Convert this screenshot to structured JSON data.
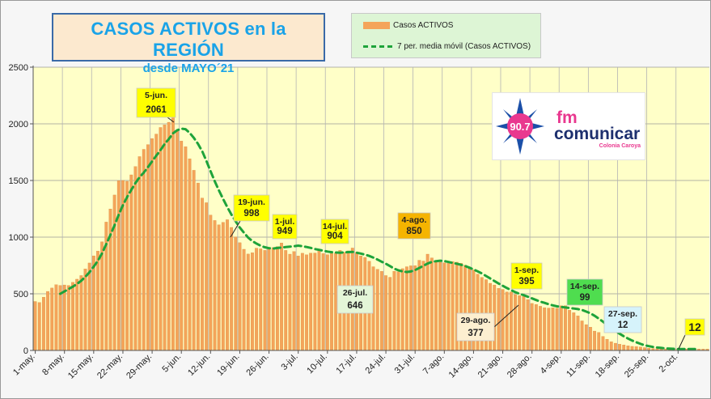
{
  "title": {
    "main": "CASOS ACTIVOS en la REGIÓN",
    "sub": "desde MAYO´21"
  },
  "legend": {
    "bars": "Casos ACTIVOS",
    "line": "7 per. media móvil (Casos ACTIVOS)"
  },
  "logo": {
    "freq": "90.7",
    "fm": "fm",
    "brand": "comunicar",
    "place": "Colonia Caroya"
  },
  "colors": {
    "bar": "#f4a45a",
    "bar_edge": "#d98a3a",
    "line": "#1ea33a",
    "plot_bg": "#ffffc8",
    "title_text": "#1aa3e8",
    "title_border": "#3a6aa8"
  },
  "chart_data": {
    "type": "bar",
    "series": [
      {
        "name": "Casos ACTIVOS",
        "values": [
          432,
          423,
          470,
          521,
          551,
          580,
          574,
          578,
          573,
          601,
          629,
          661,
          719,
          772,
          835,
          877,
          959,
          1133,
          1249,
          1372,
          1498,
          1500,
          1493,
          1550,
          1623,
          1711,
          1775,
          1817,
          1870,
          1910,
          1968,
          1991,
          2014,
          2061,
          1937,
          1848,
          1798,
          1692,
          1590,
          1478,
          1345,
          1304,
          1195,
          1147,
          1109,
          1131,
          1154,
          1086,
          1002,
          951,
          893,
          851,
          862,
          903,
          897,
          883,
          910,
          908,
          917,
          949,
          883,
          850,
          873,
          834,
          858,
          844,
          859,
          860,
          889,
          855,
          845,
          857,
          861,
          883,
          866,
          879,
          904,
          865,
          835,
          821,
          787,
          739,
          716,
          698,
          661,
          646,
          699,
          694,
          722,
          739,
          747,
          748,
          796,
          789,
          850,
          817,
          786,
          779,
          773,
          770,
          785,
          779,
          769,
          753,
          728,
          711,
          673,
          645,
          625,
          593,
          578,
          548,
          539,
          516,
          516,
          493,
          484,
          476,
          449,
          415,
          406,
          390,
          377,
          374,
          377,
          372,
          394,
          395,
          355,
          333,
          305,
          261,
          228,
          206,
          171,
          159,
          124,
          99,
          77,
          64,
          55,
          49,
          41,
          36,
          34,
          30,
          25,
          19,
          17,
          15,
          12,
          12,
          12,
          12,
          12,
          12,
          12,
          12,
          12,
          12,
          12,
          12
        ]
      },
      {
        "name": "7 per. media móvil (Casos ACTIVOS)",
        "values": [
          null,
          null,
          null,
          null,
          null,
          null,
          500,
          521,
          542,
          563,
          587,
          614,
          650,
          691,
          739,
          791,
          857,
          937,
          1020,
          1104,
          1198,
          1283,
          1353,
          1417,
          1477,
          1529,
          1570,
          1617,
          1669,
          1719,
          1768,
          1823,
          1866,
          1916,
          1943,
          1958,
          1952,
          1920,
          1876,
          1823,
          1758,
          1672,
          1582,
          1493,
          1413,
          1337,
          1265,
          1199,
          1140,
          1085,
          1039,
          996,
          966,
          943,
          924,
          911,
          902,
          899,
          904,
          908,
          912,
          916,
          920,
          925,
          920,
          913,
          905,
          895,
          888,
          880,
          873,
          867,
          864,
          863,
          866,
          868,
          870,
          863,
          855,
          846,
          834,
          819,
          802,
          783,
          765,
          744,
          722,
          707,
          697,
          692,
          697,
          709,
          728,
          747,
          767,
          781,
          788,
          792,
          789,
          781,
          773,
          765,
          756,
          745,
          731,
          715,
          698,
          679,
          657,
          635,
          613,
          591,
          571,
          551,
          532,
          514,
          500,
          488,
          474,
          459,
          445,
          431,
          420,
          408,
          398,
          389,
          384,
          379,
          375,
          370,
          365,
          357,
          343,
          328,
          306,
          281,
          254,
          223,
          198,
          171,
          148,
          125,
          105,
          87,
          72,
          58,
          46,
          38,
          31,
          26,
          22,
          18,
          16,
          14,
          13,
          12,
          12,
          12,
          12,
          12
        ]
      }
    ],
    "x_tick_labels": [
      "1-may.",
      "8-may.",
      "15-may.",
      "22-may.",
      "29-may.",
      "5-jun.",
      "12-jun.",
      "19-jun.",
      "26-jun.",
      "3-jul.",
      "10-jul.",
      "17-jul.",
      "24-jul.",
      "31-jul.",
      "7-ago.",
      "14-ago.",
      "21-ago.",
      "28-ago.",
      "4-sep.",
      "11-sep.",
      "18-sep.",
      "25-sep.",
      "2-oct."
    ],
    "y_ticks": [
      0,
      500,
      1000,
      1500,
      2000,
      2500
    ],
    "ylim": [
      0,
      2500
    ],
    "grid": true,
    "annotations": [
      {
        "day": 35,
        "date": "5-jun.",
        "value": "2061",
        "bg": "#ffff00"
      },
      {
        "day": 49,
        "date": "19-jun.",
        "value": "998",
        "bg": "#ffff00"
      },
      {
        "day": 61,
        "date": "1-jul.",
        "value": "949",
        "bg": "#ffff00"
      },
      {
        "day": 74,
        "date": "14-jul.",
        "value": "904",
        "bg": "#ffff00"
      },
      {
        "day": 86,
        "date": "26-jul.",
        "value": "646",
        "bg": "#e4f6d8"
      },
      {
        "day": 95,
        "date": "4-ago.",
        "value": "850",
        "bg": "#f5b400"
      },
      {
        "day": 120,
        "date": "29-ago.",
        "value": "377",
        "bg": "#fdefd0"
      },
      {
        "day": 123,
        "date": "1-sep.",
        "value": "395",
        "bg": "#ffff00"
      },
      {
        "day": 136,
        "date": "14-sep.",
        "value": "99",
        "bg": "#4fdd4f"
      },
      {
        "day": 149,
        "date": "27-sep.",
        "value": "12",
        "bg": "#d6f3fb"
      },
      {
        "day": 160,
        "date": "",
        "value": "12",
        "bg": "#ffff00"
      }
    ]
  }
}
